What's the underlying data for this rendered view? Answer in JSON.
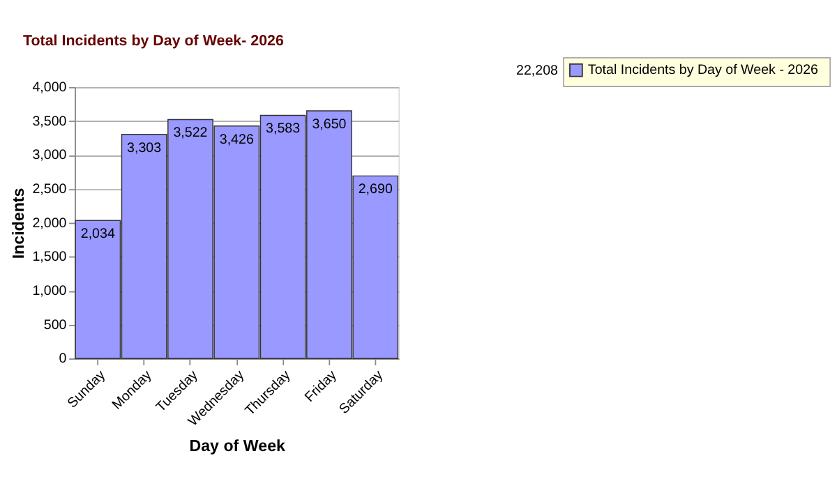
{
  "chart_data": {
    "type": "bar",
    "title": "Total Incidents by Day of Week-  2026",
    "xlabel": "Day of Week",
    "ylabel": "Incidents",
    "categories": [
      "Sunday",
      "Monday",
      "Tuesday",
      "Wednesday",
      "Thursday",
      "Friday",
      "Saturday"
    ],
    "series": [
      {
        "name": "Total Incidents by Day of Week -  2026",
        "color": "#9999ff",
        "values": [
          2034,
          3303,
          3522,
          3426,
          3583,
          3650,
          2690
        ]
      }
    ],
    "value_labels": [
      "2,034",
      "3,303",
      "3,522",
      "3,426",
      "3,583",
      "3,650",
      "2,690"
    ],
    "annotations": [
      "22,208"
    ],
    "ylim": [
      0,
      4000
    ],
    "yticks": [
      {
        "value": 0,
        "label": "0"
      },
      {
        "value": 500,
        "label": "500"
      },
      {
        "value": 1000,
        "label": "1,000"
      },
      {
        "value": 1500,
        "label": "1,500"
      },
      {
        "value": 2000,
        "label": "2,000"
      },
      {
        "value": 2500,
        "label": "2,500"
      },
      {
        "value": 3000,
        "label": "3,000"
      },
      {
        "value": 3500,
        "label": "3,500"
      },
      {
        "value": 4000,
        "label": "4,000"
      }
    ],
    "grid": "y",
    "legend": "top right"
  }
}
